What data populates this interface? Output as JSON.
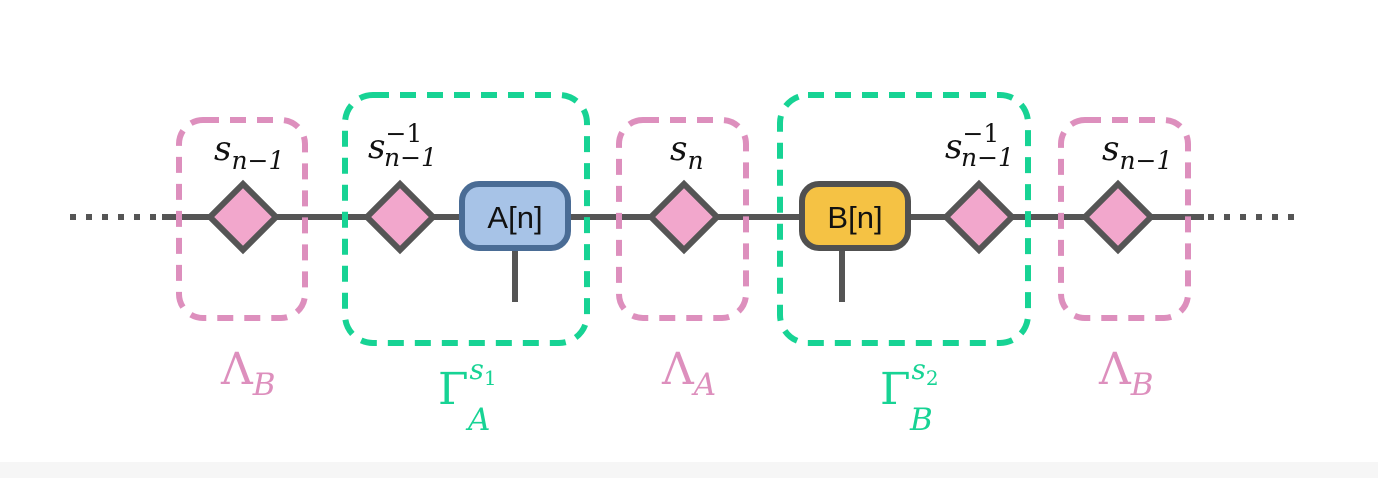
{
  "colors": {
    "line": "#555555",
    "lambda": "#dd8fbd",
    "gamma": "#17d394",
    "diamond_fill": "#f2a7cc",
    "node_a_fill": "#a7c3e7",
    "node_a_stroke": "#4a6c95",
    "node_b_fill": "#f5c244",
    "node_b_stroke": "#505050"
  },
  "icons": {
    "diamond": "singular-value-diamond",
    "tensor": "rounded-tensor-node"
  },
  "diagram": {
    "nodes": {
      "a": {
        "label": "A[n]"
      },
      "b": {
        "label": "B[n]"
      }
    },
    "symbols": {
      "s1": {
        "base": "s",
        "sub": "n−1",
        "sup": ""
      },
      "s2": {
        "base": "s",
        "sub": "n−1",
        "sup": "−1"
      },
      "s3": {
        "base": "s",
        "sub": "n",
        "sup": ""
      },
      "s4": {
        "base": "s",
        "sub": "n−1",
        "sup": "−1"
      },
      "s5": {
        "base": "s",
        "sub": "n−1",
        "sup": ""
      }
    },
    "regions": {
      "r1": {
        "main": "Λ",
        "sub": "B",
        "sup": "",
        "kind": "lambda"
      },
      "r2": {
        "main": "Γ",
        "sub": "A",
        "sup": "s",
        "sup_sub": "1",
        "kind": "gamma"
      },
      "r3": {
        "main": "Λ",
        "sub": "A",
        "sup": "",
        "kind": "lambda"
      },
      "r4": {
        "main": "Γ",
        "sub": "B",
        "sup": "s",
        "sup_sub": "2",
        "kind": "gamma"
      },
      "r5": {
        "main": "Λ",
        "sub": "B",
        "sup": "",
        "kind": "lambda"
      }
    }
  }
}
